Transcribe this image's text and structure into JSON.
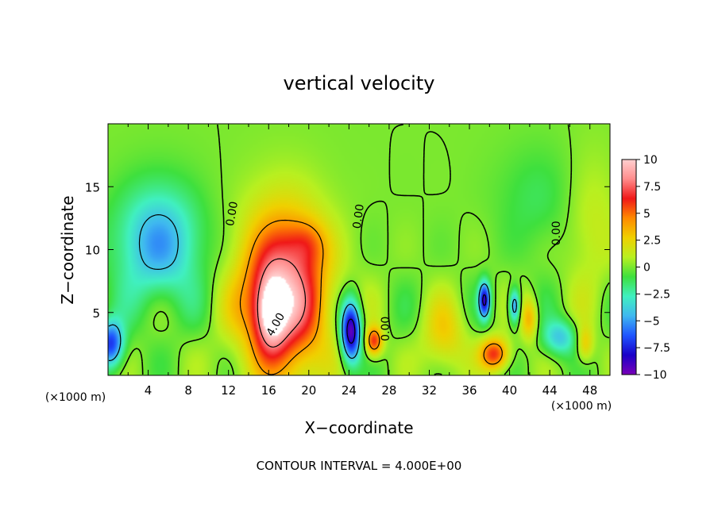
{
  "chart_data": {
    "type": "heatmap",
    "title": "vertical velocity",
    "xlabel": "X−coordinate",
    "ylabel": "Z−coordinate",
    "x_unit_left": "(×1000 m)",
    "x_unit_right": "(×1000 m)",
    "footer": "CONTOUR INTERVAL = 4.000E+00",
    "xlim": [
      0,
      50
    ],
    "ylim": [
      0,
      20
    ],
    "x_ticks": [
      "4",
      "8",
      "12",
      "16",
      "20",
      "24",
      "28",
      "32",
      "36",
      "40",
      "44",
      "48"
    ],
    "x_tick_values": [
      4,
      8,
      12,
      16,
      20,
      24,
      28,
      32,
      36,
      40,
      44,
      48
    ],
    "y_ticks": [
      "5",
      "10",
      "15"
    ],
    "y_tick_values": [
      5,
      10,
      15
    ],
    "colorbar": {
      "range": [
        -10,
        10
      ],
      "labels": [
        "10",
        "7.5",
        "5",
        "2.5",
        "0",
        "−2.5",
        "−5",
        "−7.5",
        "−10"
      ],
      "label_values": [
        10,
        7.5,
        5,
        2.5,
        0,
        -2.5,
        -5,
        -7.5,
        -10
      ],
      "stops": [
        "#7a00b8",
        "#1a00c8",
        "#1f55ff",
        "#3fb8f0",
        "#40f0c0",
        "#3ee03e",
        "#b8f020",
        "#f0d000",
        "#ff8a00",
        "#f01818",
        "#ff8c8c",
        "#ffd0d0"
      ]
    },
    "contour_labels": [
      {
        "text": "0.00",
        "x": 12.7,
        "y": 12.8,
        "angle": -80
      },
      {
        "text": "0.00",
        "x": 25.3,
        "y": 12.6,
        "angle": -82
      },
      {
        "text": "0.00",
        "x": 45.0,
        "y": 11.3,
        "angle": -90
      },
      {
        "text": "0.00",
        "x": 28.0,
        "y": 3.7,
        "angle": -90
      },
      {
        "text": "4.00",
        "x": 17.0,
        "y": 3.9,
        "angle": -60
      }
    ],
    "features": [
      {
        "name": "updraft",
        "x": 17.5,
        "z": 6.5,
        "sx": 3.0,
        "sz": 4.5,
        "w": 9
      },
      {
        "name": "updraft-core",
        "x": 16.2,
        "z": 5.0,
        "sx": 1.1,
        "sz": 2.0,
        "w": 6
      },
      {
        "name": "updraft-upper",
        "x": 20.0,
        "z": 10.5,
        "sx": 1.3,
        "sz": 1.3,
        "w": 2
      },
      {
        "name": "downdraft-left",
        "x": 5.0,
        "z": 10.5,
        "sx": 3.0,
        "sz": 3.2,
        "w": -5
      },
      {
        "name": "downdraft-edge",
        "x": 0.3,
        "z": 2.5,
        "sx": 0.9,
        "sz": 1.3,
        "w": -7
      },
      {
        "name": "downdraft-x24",
        "x": 24.2,
        "z": 3.5,
        "sx": 0.7,
        "sz": 1.7,
        "w": -10
      },
      {
        "name": "updraft-x26",
        "x": 26.5,
        "z": 2.7,
        "sx": 0.6,
        "sz": 0.8,
        "w": 6
      },
      {
        "name": "updraft-x33",
        "x": 33.5,
        "z": 3.0,
        "sx": 1.6,
        "sz": 2.0,
        "w": 2.5
      },
      {
        "name": "updraft-x38",
        "x": 38.5,
        "z": 1.7,
        "sx": 1.0,
        "sz": 0.9,
        "w": 6
      },
      {
        "name": "downdraft-x37",
        "x": 37.5,
        "z": 6.0,
        "sx": 0.4,
        "sz": 1.0,
        "w": -8
      },
      {
        "name": "downdraft-x40",
        "x": 40.5,
        "z": 5.5,
        "sx": 0.4,
        "sz": 1.0,
        "w": -6
      },
      {
        "name": "updraft-x42",
        "x": 42.0,
        "z": 4.5,
        "sx": 0.6,
        "sz": 1.2,
        "w": 3.5
      },
      {
        "name": "downdraft-x45",
        "x": 45.0,
        "z": 3.0,
        "sx": 1.2,
        "sz": 1.0,
        "w": -4
      },
      {
        "name": "updraft-x47",
        "x": 47.5,
        "z": 2.5,
        "sx": 0.6,
        "sz": 1.0,
        "w": 3
      },
      {
        "name": "downdraft-upper-right",
        "x": 43.0,
        "z": 14.0,
        "sx": 3.0,
        "sz": 3.0,
        "w": -1.3
      },
      {
        "name": "updraft-upper-right",
        "x": 48.0,
        "z": 12.0,
        "sx": 2.0,
        "sz": 4.0,
        "w": 1.5
      }
    ]
  }
}
